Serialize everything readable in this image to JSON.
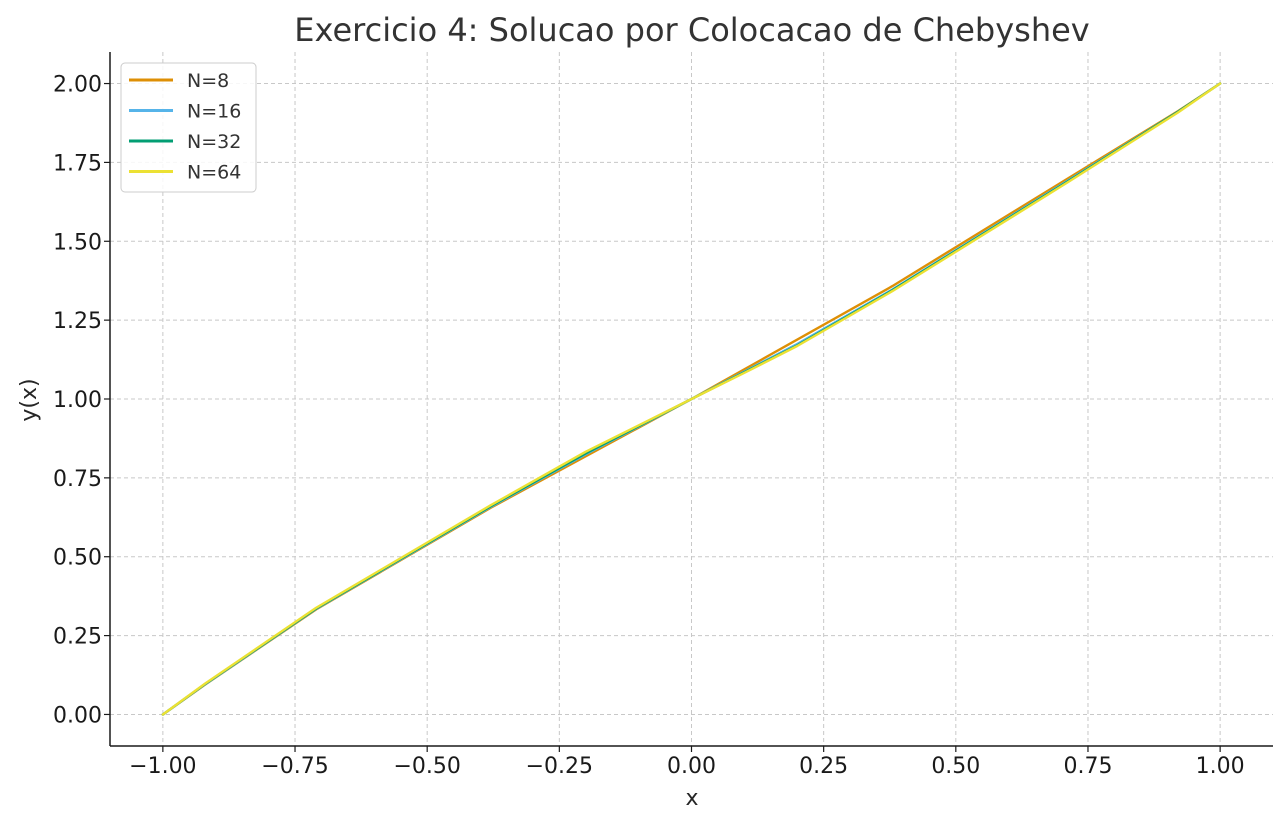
{
  "chart_data": {
    "type": "line",
    "title": "Exercicio 4: Solucao por Colocacao de Chebyshev",
    "xlabel": "x",
    "ylabel": "y(x)",
    "xlim": [
      -1.1,
      1.1
    ],
    "ylim": [
      -0.1,
      2.1
    ],
    "xticks": [
      -1.0,
      -0.75,
      -0.5,
      -0.25,
      0.0,
      0.25,
      0.5,
      0.75,
      1.0
    ],
    "xtick_labels": [
      "−1.00",
      "−0.75",
      "−0.50",
      "−0.25",
      "0.00",
      "0.25",
      "0.50",
      "0.75",
      "1.00"
    ],
    "yticks": [
      0.0,
      0.25,
      0.5,
      0.75,
      1.0,
      1.25,
      1.5,
      1.75,
      2.0
    ],
    "ytick_labels": [
      "0.00",
      "0.25",
      "0.50",
      "0.75",
      "1.00",
      "1.25",
      "1.50",
      "1.75",
      "2.00"
    ],
    "grid": true,
    "legend_position": "top-left",
    "series": [
      {
        "name": "N=8",
        "color": "#DE8F05",
        "x": [
          -1.0,
          -0.92,
          -0.71,
          -0.38,
          0.0,
          0.38,
          0.71,
          0.92,
          1.0
        ],
        "y": [
          0.0,
          0.095,
          0.333,
          0.655,
          1.0,
          1.358,
          1.697,
          1.912,
          2.0
        ]
      },
      {
        "name": "N=16",
        "color": "#56B4E9",
        "x": [
          -1.0,
          -0.92,
          -0.71,
          -0.38,
          -0.2,
          0.0,
          0.2,
          0.38,
          0.71,
          0.92,
          1.0
        ],
        "y": [
          0.0,
          0.096,
          0.335,
          0.658,
          0.825,
          1.0,
          1.174,
          1.347,
          1.69,
          1.91,
          2.0
        ]
      },
      {
        "name": "N=32",
        "color": "#029E73",
        "x": [
          -1.0,
          -0.92,
          -0.71,
          -0.38,
          -0.2,
          0.0,
          0.2,
          0.38,
          0.71,
          0.92,
          1.0
        ],
        "y": [
          0.0,
          0.097,
          0.336,
          0.66,
          0.828,
          1.0,
          1.17,
          1.345,
          1.688,
          1.91,
          2.0
        ]
      },
      {
        "name": "N=64",
        "color": "#ECE133",
        "x": [
          -1.0,
          -0.92,
          -0.71,
          -0.38,
          -0.2,
          0.0,
          0.1,
          0.2,
          0.38,
          0.71,
          0.92,
          1.0
        ],
        "y": [
          0.0,
          0.098,
          0.338,
          0.663,
          0.833,
          1.0,
          1.083,
          1.168,
          1.342,
          1.685,
          1.908,
          2.0
        ]
      }
    ]
  }
}
